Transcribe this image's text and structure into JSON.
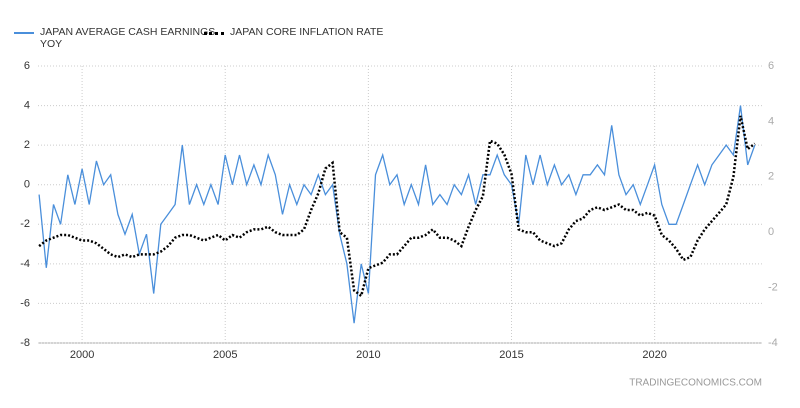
{
  "chart_data": {
    "type": "line",
    "source": "TRADINGECONOMICS.COM",
    "x": [
      1998.5,
      1998.75,
      1999,
      1999.25,
      1999.5,
      1999.75,
      2000,
      2000.25,
      2000.5,
      2000.75,
      2001,
      2001.25,
      2001.5,
      2001.75,
      2002,
      2002.25,
      2002.5,
      2002.75,
      2003,
      2003.25,
      2003.5,
      2003.75,
      2004,
      2004.25,
      2004.5,
      2004.75,
      2005,
      2005.25,
      2005.5,
      2005.75,
      2006,
      2006.25,
      2006.5,
      2006.75,
      2007,
      2007.25,
      2007.5,
      2007.75,
      2008,
      2008.25,
      2008.5,
      2008.75,
      2009,
      2009.25,
      2009.5,
      2009.75,
      2010,
      2010.25,
      2010.5,
      2010.75,
      2011,
      2011.25,
      2011.5,
      2011.75,
      2012,
      2012.25,
      2012.5,
      2012.75,
      2013,
      2013.25,
      2013.5,
      2013.75,
      2014,
      2014.25,
      2014.5,
      2014.75,
      2015,
      2015.25,
      2015.5,
      2015.75,
      2016,
      2016.25,
      2016.5,
      2016.75,
      2017,
      2017.25,
      2017.5,
      2017.75,
      2018,
      2018.25,
      2018.5,
      2018.75,
      2019,
      2019.25,
      2019.5,
      2019.75,
      2020,
      2020.25,
      2020.5,
      2020.75,
      2021,
      2021.25,
      2021.5,
      2021.75,
      2022,
      2022.25,
      2022.5,
      2022.75,
      2023,
      2023.25,
      2023.5
    ],
    "series": [
      {
        "name": "JAPAN AVERAGE CASH EARNINGS YOY",
        "color": "#4a8fdb",
        "axis": "y",
        "values": [
          -0.5,
          -4.2,
          -1,
          -2,
          0.5,
          -1,
          0.8,
          -1,
          1.2,
          0,
          0.5,
          -1.5,
          -2.5,
          -1.5,
          -3.5,
          -2.5,
          -5.5,
          -2,
          -1.5,
          -1,
          2,
          -1,
          0,
          -1,
          0,
          -1,
          1.5,
          0,
          1.5,
          0,
          1,
          0,
          1.5,
          0.5,
          -1.5,
          0,
          -1,
          0,
          -0.5,
          0.5,
          -0.5,
          0,
          -2.5,
          -4,
          -7,
          -4,
          -5.5,
          0.5,
          1.5,
          0,
          0.5,
          -1,
          0,
          -1,
          1,
          -1,
          -0.5,
          -1,
          0,
          -0.5,
          0.5,
          -1,
          0.5,
          0.5,
          1.5,
          0.5,
          0,
          -2,
          1.5,
          0,
          1.5,
          0,
          1,
          0,
          0.5,
          -0.5,
          0.5,
          0.5,
          1,
          0.5,
          3,
          0.5,
          -0.5,
          0,
          -1,
          0,
          1,
          -1,
          -2,
          -2,
          -1,
          0,
          1,
          0,
          1,
          1.5,
          2,
          1.5,
          4,
          1,
          2
        ]
      },
      {
        "name": "JAPAN CORE INFLATION RATE",
        "color": "#000000",
        "axis": "y2",
        "values": [
          -0.5,
          -0.3,
          -0.2,
          -0.1,
          -0.1,
          -0.2,
          -0.3,
          -0.3,
          -0.4,
          -0.6,
          -0.8,
          -0.9,
          -0.8,
          -0.9,
          -0.8,
          -0.8,
          -0.8,
          -0.7,
          -0.5,
          -0.2,
          -0.1,
          -0.1,
          -0.2,
          -0.3,
          -0.2,
          -0.1,
          -0.3,
          -0.1,
          -0.2,
          0,
          0.1,
          0.1,
          0.2,
          0,
          -0.1,
          -0.1,
          -0.1,
          0.1,
          0.8,
          1.4,
          2.3,
          2.5,
          0,
          -0.2,
          -2.1,
          -2.3,
          -1.3,
          -1.2,
          -1.1,
          -0.8,
          -0.8,
          -0.5,
          -0.2,
          -0.2,
          -0.1,
          0.1,
          -0.2,
          -0.2,
          -0.3,
          -0.5,
          0.2,
          0.8,
          1.3,
          3.3,
          3.2,
          2.8,
          2.1,
          0.1,
          0,
          0,
          -0.3,
          -0.4,
          -0.5,
          -0.4,
          0.1,
          0.4,
          0.5,
          0.8,
          0.9,
          0.8,
          0.9,
          1.0,
          0.8,
          0.8,
          0.6,
          0.7,
          0.6,
          -0.1,
          -0.3,
          -0.6,
          -1.0,
          -0.9,
          -0.3,
          0.1,
          0.4,
          0.7,
          1.0,
          2.0,
          4.2,
          3.0,
          3.2
        ]
      }
    ],
    "xlim": [
      1998.46,
      2023.75
    ],
    "xticks": [
      2000,
      2005,
      2010,
      2015,
      2020
    ],
    "ylim": [
      -8,
      6
    ],
    "yticks": [
      -8,
      -6,
      -4,
      -2,
      0,
      2,
      4,
      6
    ],
    "y2lim": [
      -4,
      6
    ],
    "y2ticks": [
      -4,
      -2,
      0,
      2,
      4,
      6
    ],
    "grid": true,
    "legend": "top-left"
  }
}
